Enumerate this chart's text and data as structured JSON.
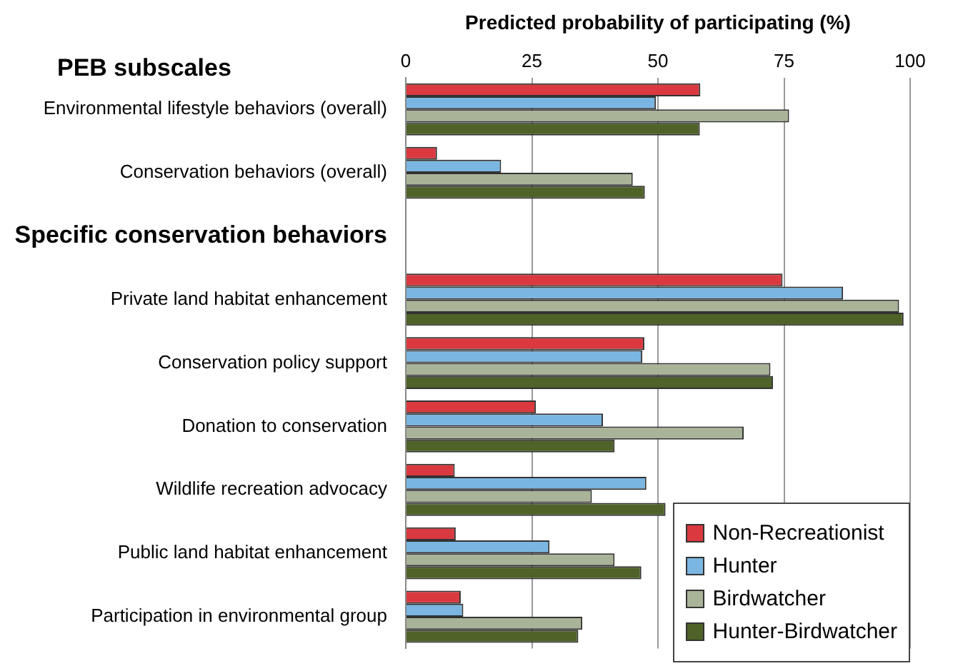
{
  "chart_data": {
    "type": "bar",
    "orientation": "horizontal",
    "xlabel": "Predicted probability of participating (%)",
    "annotations": [
      "PEB subscales"
    ],
    "categories": [
      "Environmental lifestyle behaviors (overall)",
      "Conservation behaviors (overall)",
      "Specific conservation behaviors",
      "Private land habitat enhancement",
      "Conservation policy support",
      "Donation to conservation",
      "Wildlife recreation advocacy",
      "Public land habitat enhancement",
      "Participation in environmental group"
    ],
    "series": [
      {
        "name": "Non-Recreationist",
        "color": "#d9393f",
        "values": [
          58.4,
          6.2,
          null,
          74.7,
          47.3,
          25.8,
          9.7,
          9.9,
          10.9
        ]
      },
      {
        "name": "Hunter",
        "color": "#7ab6e1",
        "values": [
          49.6,
          18.9,
          null,
          86.7,
          46.9,
          39.1,
          47.7,
          28.5,
          11.4
        ]
      },
      {
        "name": "Birdwatcher",
        "color": "#a9b398",
        "values": [
          76,
          45,
          null,
          97.8,
          72.3,
          67,
          36.9,
          41.4,
          35
        ]
      },
      {
        "name": "Hunter-Birdwatcher",
        "color": "#4f6228",
        "values": [
          58.3,
          47.4,
          null,
          98.7,
          72.8,
          41.4,
          51.5,
          46.7,
          34.2
        ]
      }
    ],
    "xlim": [
      0,
      100
    ],
    "xticks": [
      0,
      25,
      50,
      75,
      100
    ],
    "grid": "x",
    "legend": "bottom right"
  }
}
